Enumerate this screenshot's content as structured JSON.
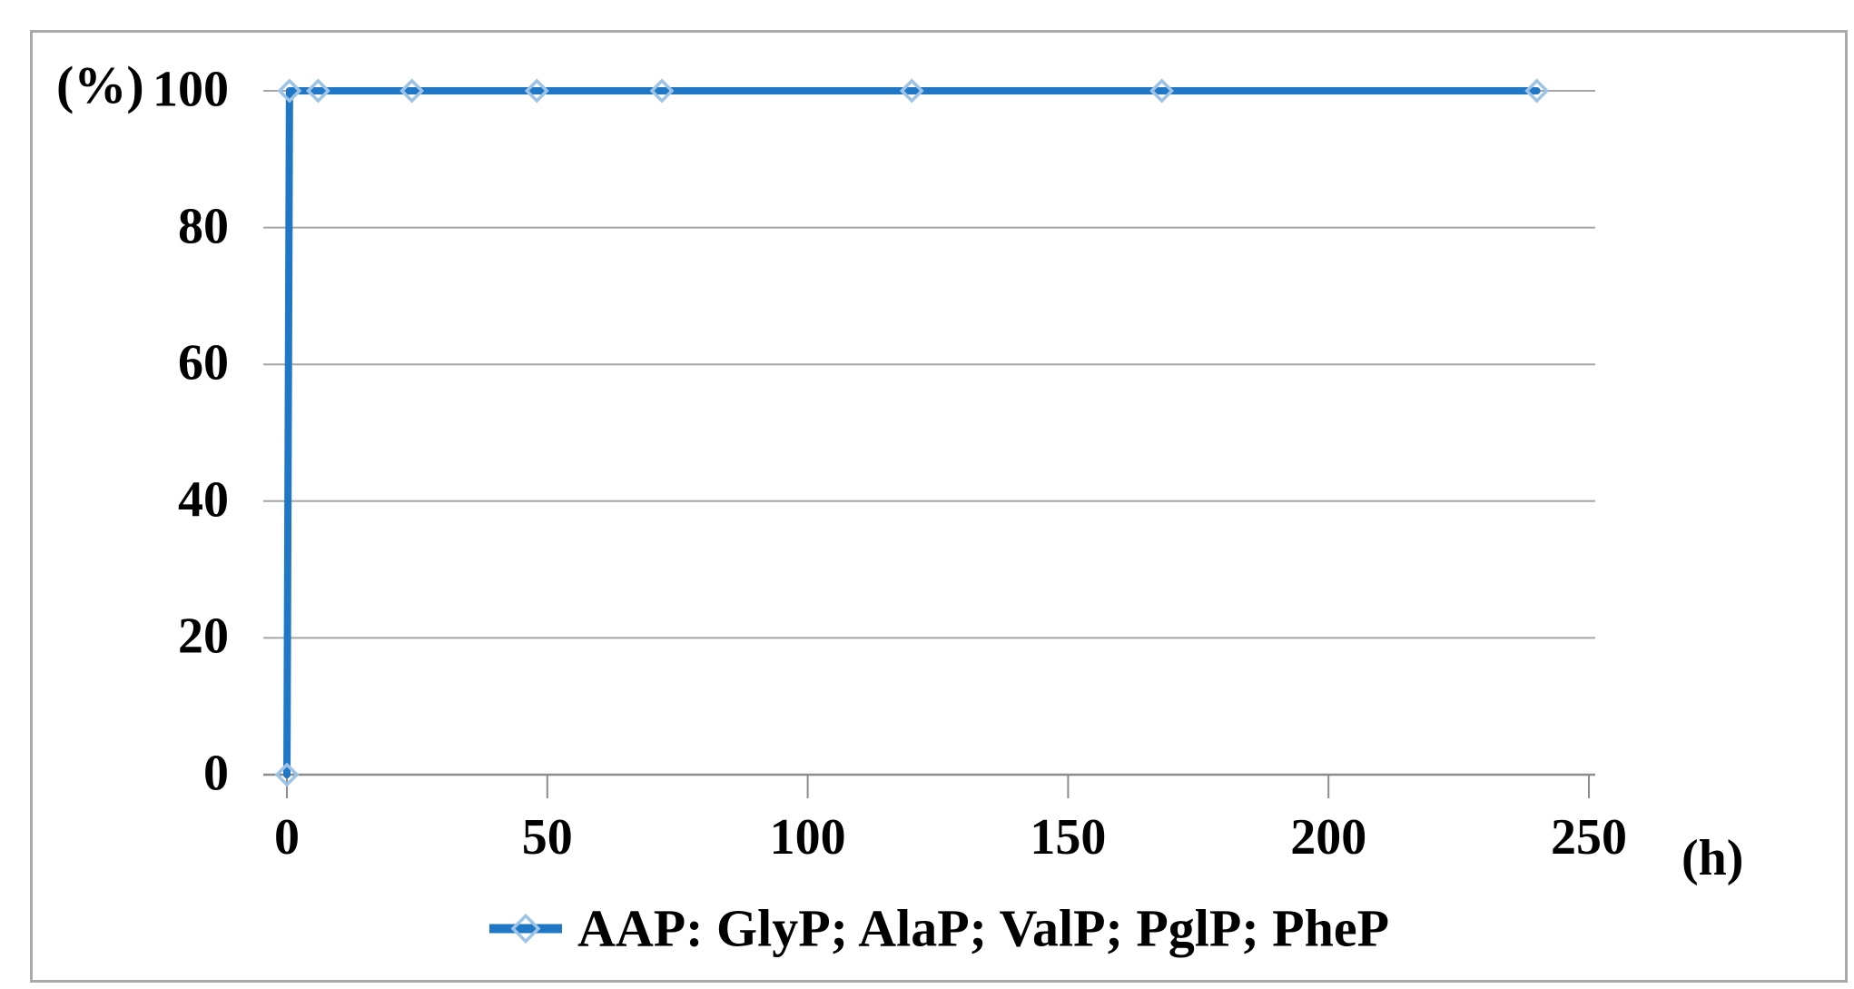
{
  "figure": {
    "description": "Stability line chart: percentage vs time in hours",
    "background": "#ffffff"
  },
  "chart_data": {
    "type": "line",
    "title": "",
    "ylabel": "(%)",
    "xlabel": "(h)",
    "xlim": [
      0,
      250
    ],
    "ylim": [
      0,
      100
    ],
    "x_ticks": [
      0,
      50,
      100,
      150,
      200,
      250
    ],
    "y_ticks": [
      0,
      20,
      40,
      60,
      80,
      100
    ],
    "grid": "horizontal",
    "legend_position": "bottom-center",
    "series": [
      {
        "name": "AAP: GlyP; AlaP; ValP; PglP; PheP",
        "marker": "open-diamond",
        "points": [
          [
            0,
            0
          ],
          [
            0.5,
            100
          ],
          [
            6,
            100
          ],
          [
            24,
            100
          ],
          [
            48,
            100
          ],
          [
            72,
            100
          ],
          [
            120,
            100
          ],
          [
            168,
            100
          ],
          [
            240,
            100
          ]
        ]
      }
    ]
  },
  "labels": {
    "y_axis_unit": "(%)",
    "x_axis_unit": "(h)",
    "legend": "AAP: GlyP; AlaP; ValP; PglP; PheP"
  },
  "colors": {
    "series_line": "#2077C5",
    "marker_outline": "#9DC3E6",
    "gridline": "#a6a6a6",
    "axis": "#8c8c8c",
    "border": "#a9a9a9",
    "text": "#000000"
  }
}
